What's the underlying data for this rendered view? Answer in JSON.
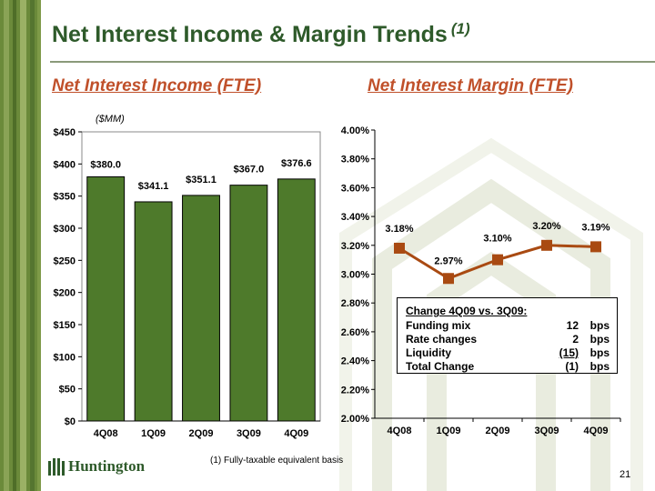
{
  "title": "Net Interest Income & Margin Trends",
  "title_note": "(1)",
  "left_subtitle": "Net Interest Income (FTE)",
  "right_subtitle": "Net Interest Margin (FTE)",
  "units_label": "($MM)",
  "footnote": "(1)  Fully-taxable equivalent basis",
  "page_number": "21",
  "logo_text": "Huntington",
  "colors": {
    "bar": "#4e7a2b",
    "line": "#a94a12",
    "title": "#2e5a2a",
    "subtitle": "#c0502a"
  },
  "chart_data": [
    {
      "type": "bar",
      "title": "Net Interest Income (FTE)",
      "ylabel": "($MM)",
      "categories": [
        "4Q08",
        "1Q09",
        "2Q09",
        "3Q09",
        "4Q09"
      ],
      "values": [
        380.0,
        341.1,
        351.1,
        367.0,
        376.6
      ],
      "data_labels": [
        "$380.0",
        "$341.1",
        "$351.1",
        "$367.0",
        "$376.6"
      ],
      "ylim": [
        0,
        450
      ],
      "yticks": [
        "$0",
        "$50",
        "$100",
        "$150",
        "$200",
        "$250",
        "$300",
        "$350",
        "$400",
        "$450"
      ],
      "grid": false,
      "legend": "none"
    },
    {
      "type": "line",
      "title": "Net Interest Margin (FTE)",
      "categories": [
        "4Q08",
        "1Q09",
        "2Q09",
        "3Q09",
        "4Q09"
      ],
      "values": [
        3.18,
        2.97,
        3.1,
        3.2,
        3.19
      ],
      "data_labels": [
        "3.18%",
        "2.97%",
        "3.10%",
        "3.20%",
        "3.19%"
      ],
      "ylim": [
        2.0,
        4.0
      ],
      "yticks": [
        "2.00%",
        "2.20%",
        "2.40%",
        "2.60%",
        "2.80%",
        "3.00%",
        "3.20%",
        "3.40%",
        "3.60%",
        "3.80%",
        "4.00%"
      ],
      "grid": false,
      "legend": "none"
    }
  ],
  "change_box": {
    "heading": "Change 4Q09  vs. 3Q09:",
    "rows": [
      {
        "label": "Funding mix",
        "value": "12",
        "unit": "bps"
      },
      {
        "label": "Rate changes",
        "value": "2",
        "unit": "bps"
      },
      {
        "label": "Liquidity",
        "value": "(15)",
        "unit": "bps"
      },
      {
        "label": "Total Change",
        "value": "(1)",
        "unit": "bps"
      }
    ]
  }
}
